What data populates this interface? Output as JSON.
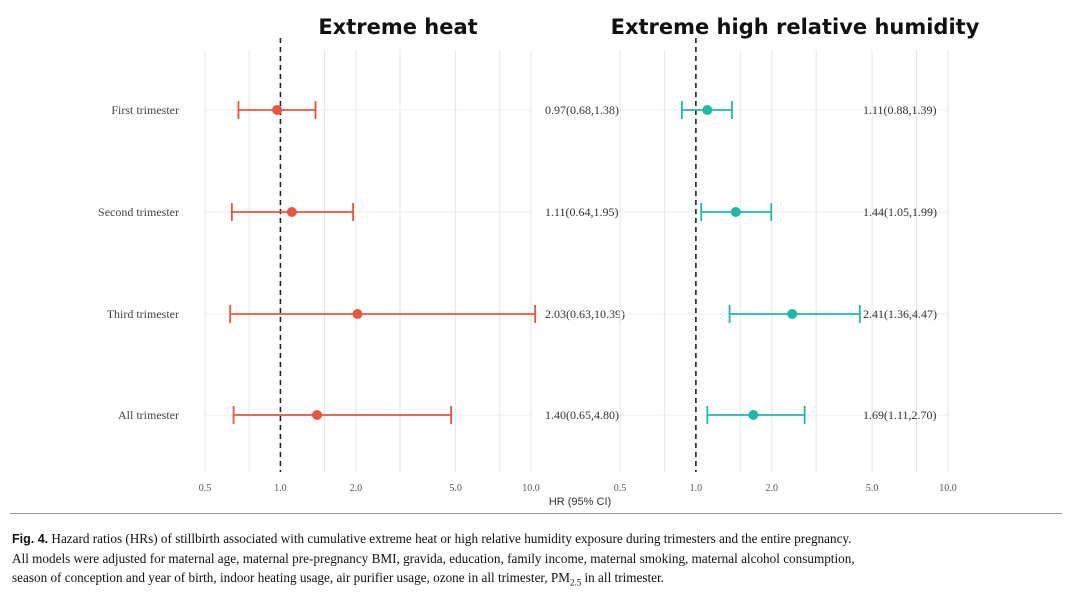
{
  "chart_data": {
    "type": "forest",
    "xlabel": "HR (95% CI)",
    "x_ticks": [
      0.5,
      1.0,
      2.0,
      5.0,
      10.0
    ],
    "x_tick_labels": [
      "0.5",
      "1.0",
      "2.0",
      "5.0",
      "10.0"
    ],
    "log_scale": true,
    "reference_line": 1.0,
    "categories": [
      "First trimester",
      "Second trimester",
      "Third trimester",
      "All trimester"
    ],
    "panels": [
      {
        "title": "Extreme heat",
        "color": "#e8553f",
        "hr": [
          0.97,
          1.11,
          2.03,
          1.4
        ],
        "lower": [
          0.68,
          0.64,
          0.63,
          0.65
        ],
        "upper": [
          1.38,
          1.95,
          10.39,
          4.8
        ],
        "labels": [
          "0.97(0.68,1.38)",
          "1.11(0.64,1.95)",
          "2.03(0.63,10.39)",
          "1.40(0.65,4.80)"
        ]
      },
      {
        "title": "Extreme high relative humidity",
        "color": "#1fb8a9",
        "hr": [
          1.11,
          1.44,
          2.41,
          1.69
        ],
        "lower": [
          0.88,
          1.05,
          1.36,
          1.11
        ],
        "upper": [
          1.39,
          1.99,
          4.47,
          2.7
        ],
        "labels": [
          "1.11(0.88,1.39)",
          "1.44(1.05,1.99)",
          "2.41(1.36,4.47)",
          "1.69(1.11,2.70)"
        ]
      }
    ]
  },
  "caption": {
    "fig_label": "Fig. 4.",
    "text_line1": "Hazard ratios (HRs) of stillbirth associated with cumulative extreme heat or high relative humidity exposure during trimesters and the entire pregnancy.",
    "text_line2": "All models were adjusted for maternal age, maternal pre-pregnancy BMI, gravida, education, family income, maternal smoking, maternal alcohol consumption,",
    "text_line3_pre": "season of conception and year of birth, indoor heating usage, air purifier usage, ozone in all trimester, PM",
    "text_line3_sub": "2.5",
    "text_line3_post": " in all trimester."
  }
}
